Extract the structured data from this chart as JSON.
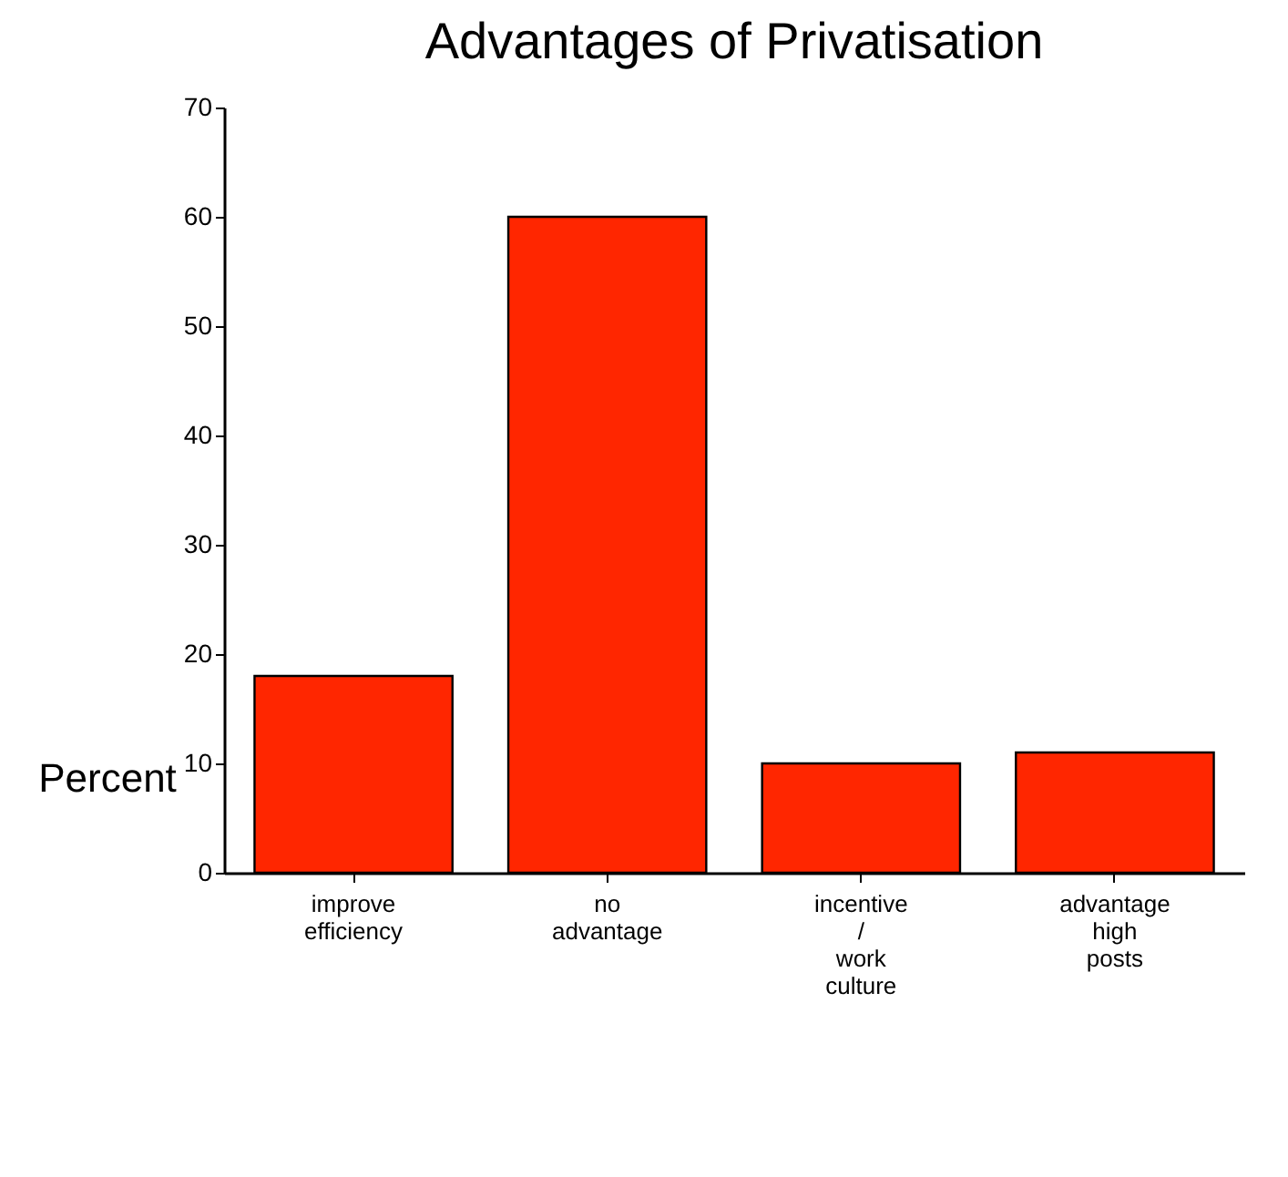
{
  "chart_data": {
    "type": "bar",
    "title": "Advantages of Privatisation",
    "ylabel": "Percent",
    "categories": [
      "improve efficiency",
      "no advantage",
      "incentive / work culture",
      "advantage high posts"
    ],
    "values": [
      18,
      60,
      10,
      11
    ],
    "color": "#ff2600",
    "ylim": [
      0,
      70
    ],
    "yticks": [
      0,
      10,
      20,
      30,
      40,
      50,
      60,
      70
    ],
    "grid": false
  }
}
